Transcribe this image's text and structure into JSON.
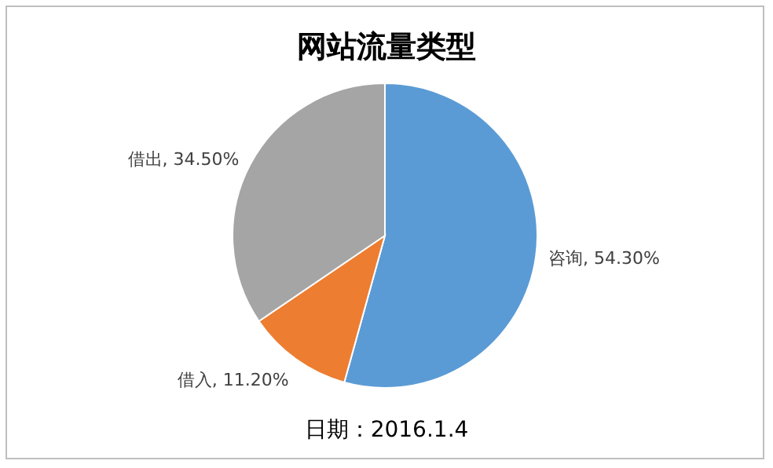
{
  "chart_data": {
    "type": "pie",
    "title": "网站流量类型",
    "categories": [
      "咨询",
      "借入",
      "借出"
    ],
    "values": [
      54.3,
      11.2,
      34.5
    ],
    "colors": [
      "#5b9bd5",
      "#ed7d31",
      "#a5a5a5"
    ],
    "value_labels": [
      "54.30%",
      "11.20%",
      "34.50%"
    ],
    "legend": false,
    "annotations": [
      "日期：2016.1.4"
    ]
  }
}
